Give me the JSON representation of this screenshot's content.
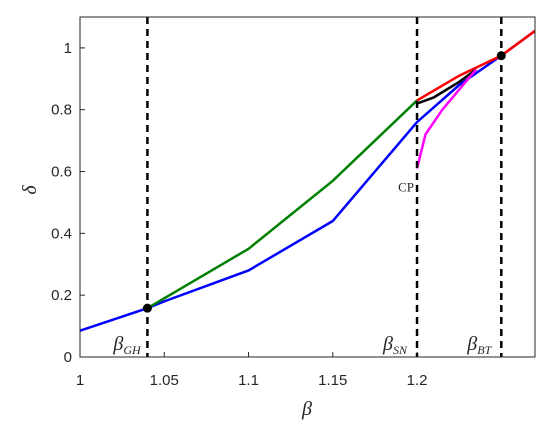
{
  "chart_data": {
    "type": "line",
    "xlabel": "β",
    "ylabel": "δ",
    "xlim": [
      1,
      1.27
    ],
    "ylim": [
      0,
      1.1
    ],
    "xticks": [
      1,
      1.05,
      1.1,
      1.15,
      1.2
    ],
    "yticks": [
      0,
      0.2,
      0.4,
      0.6,
      0.8,
      1
    ],
    "series": [
      {
        "color": "#0000ff",
        "x": [
          1,
          1.04,
          1.05,
          1.1,
          1.15,
          1.2,
          1.225,
          1.25,
          1.27
        ],
        "values": [
          0.085,
          0.158,
          0.18,
          0.28,
          0.44,
          0.76,
          0.88,
          0.975,
          1.055
        ]
      },
      {
        "color": "#008000",
        "x": [
          1.04,
          1.05,
          1.1,
          1.15,
          1.2
        ],
        "values": [
          0.158,
          0.19,
          0.35,
          0.57,
          0.83
        ]
      },
      {
        "color": "#ff0000",
        "x": [
          1.2,
          1.225,
          1.25,
          1.27
        ],
        "values": [
          0.83,
          0.91,
          0.975,
          1.055
        ]
      },
      {
        "color": "#000000",
        "x": [
          1.2,
          1.21,
          1.225,
          1.235
        ],
        "values": [
          0.82,
          0.84,
          0.89,
          0.93
        ]
      },
      {
        "color": "#ff00ff",
        "x": [
          1.2,
          1.205,
          1.215,
          1.235
        ],
        "values": [
          0.61,
          0.72,
          0.8,
          0.93
        ]
      }
    ],
    "vlines": [
      {
        "x": 1.04,
        "symbol": "β",
        "sub": "GH"
      },
      {
        "x": 1.2,
        "symbol": "β",
        "sub": "SN"
      },
      {
        "x": 1.25,
        "symbol": "β",
        "sub": "BT"
      }
    ],
    "points": [
      {
        "x": 1.04,
        "y": 0.158
      },
      {
        "x": 1.25,
        "y": 0.975
      }
    ],
    "annotations": [
      {
        "text": "CP",
        "x": 1.2,
        "y": 0.58
      }
    ]
  }
}
